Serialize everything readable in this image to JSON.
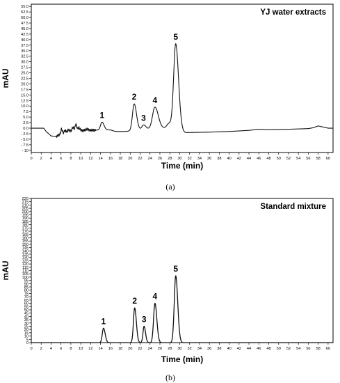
{
  "chart_data": [
    {
      "type": "line",
      "caption": "(a)",
      "legend": "YJ water extracts",
      "xlabel": "Time (min)",
      "ylabel": "mAU",
      "xlim": [
        0,
        61
      ],
      "ylim": [
        -11,
        56
      ],
      "xticks": [
        0,
        2,
        4,
        6,
        8,
        10,
        12,
        14,
        16,
        18,
        20,
        22,
        24,
        26,
        28,
        30,
        32,
        34,
        36,
        38,
        40,
        42,
        44,
        46,
        48,
        50,
        52,
        54,
        56,
        58,
        60
      ],
      "yticks": [
        -10,
        -7.5,
        -5,
        -2.5,
        0,
        2.5,
        5,
        7.5,
        10,
        12.5,
        15,
        17.5,
        20,
        22.5,
        25,
        27.5,
        30,
        32.5,
        35,
        37.5,
        40,
        42.5,
        45,
        47.5,
        50,
        52.5,
        55
      ],
      "ytick_labels": [
        "- 10",
        "- 7.5",
        "- 5.0",
        "- 2.5",
        "0.0",
        "2.5",
        "5.0",
        "7.5",
        "10.0",
        "12.5",
        "15.0",
        "17.5",
        "20.0",
        "22.5",
        "25.0",
        "27.5",
        "30.0",
        "32.5",
        "35.0",
        "37.5",
        "40.0",
        "42.5",
        "45.0",
        "47.5",
        "50.0",
        "52.5",
        "55.0"
      ],
      "baseline": [
        [
          0,
          0
        ],
        [
          2.5,
          0
        ],
        [
          3,
          -1.5
        ],
        [
          4,
          -3.5
        ],
        [
          5,
          -3.8
        ],
        [
          6,
          -2.5
        ],
        [
          8,
          -1.2
        ],
        [
          10,
          -1
        ],
        [
          12,
          -1
        ],
        [
          14,
          -0.8
        ],
        [
          16,
          -0.8
        ],
        [
          17,
          -1.5
        ],
        [
          19,
          -1.5
        ],
        [
          21,
          -1
        ],
        [
          23,
          -0.5
        ],
        [
          25,
          -0.5
        ],
        [
          27,
          0
        ],
        [
          29,
          0.3
        ],
        [
          30,
          -0.8
        ],
        [
          31,
          -2
        ],
        [
          36,
          -1.8
        ],
        [
          40,
          -1.5
        ],
        [
          44,
          -1
        ],
        [
          46,
          -0.5
        ],
        [
          48,
          -0.7
        ],
        [
          52,
          -0.5
        ],
        [
          56,
          -0.2
        ],
        [
          57,
          0.2
        ],
        [
          58,
          1
        ],
        [
          59,
          0.5
        ],
        [
          60,
          0
        ],
        [
          61,
          0
        ]
      ],
      "peaks": [
        {
          "label": "1",
          "rt": 14.3,
          "height": 3.5,
          "width": 0.3
        },
        {
          "label": "2",
          "rt": 20.8,
          "height": 12.0,
          "width": 0.35
        },
        {
          "label": "3",
          "rt": 22.7,
          "height": 2.0,
          "width": 0.35
        },
        {
          "label": "4",
          "rt": 25.0,
          "height": 10.0,
          "width": 0.5
        },
        {
          "label": "5",
          "rt": 29.2,
          "height": 38.0,
          "width": 0.42
        }
      ],
      "minor_peaks": [
        {
          "rt": 6.1,
          "height": 2.0,
          "width": 0.12
        },
        {
          "rt": 6.8,
          "height": 1.0,
          "width": 0.12
        },
        {
          "rt": 7.5,
          "height": 0.8,
          "width": 0.12
        },
        {
          "rt": 8.4,
          "height": 1.5,
          "width": 0.15
        },
        {
          "rt": 9.0,
          "height": 2.8,
          "width": 0.15
        },
        {
          "rt": 9.6,
          "height": 1.2,
          "width": 0.15
        },
        {
          "rt": 11.3,
          "height": 0.6,
          "width": 0.2
        },
        {
          "rt": 27.8,
          "height": 2.0,
          "width": 0.4
        }
      ]
    },
    {
      "type": "line",
      "caption": "(b)",
      "legend": "Standard mixture",
      "xlabel": "Time (min)",
      "ylabel": "mAU",
      "xlim": [
        0,
        61
      ],
      "ylim": [
        0,
        220
      ],
      "xticks": [
        0,
        2,
        4,
        6,
        8,
        10,
        12,
        14,
        16,
        18,
        20,
        22,
        24,
        26,
        28,
        30,
        32,
        34,
        36,
        38,
        40,
        42,
        44,
        46,
        48,
        50,
        52,
        54,
        56,
        58,
        60
      ],
      "yticks": [
        0,
        5,
        10,
        15,
        20,
        25,
        30,
        35,
        40,
        45,
        50,
        55,
        60,
        65,
        70,
        75,
        80,
        85,
        90,
        95,
        100,
        105,
        110,
        115,
        120,
        125,
        130,
        135,
        140,
        145,
        150,
        155,
        160,
        165,
        170,
        175,
        180,
        185,
        190,
        195,
        200,
        205,
        210,
        215,
        220
      ],
      "ytick_labels": [
        "0",
        "5",
        "10",
        "15",
        "20",
        "25",
        "30",
        "35",
        "40",
        "45",
        "50",
        "55",
        "60",
        "65",
        "70",
        "75",
        "80",
        "85",
        "90",
        "95",
        "100",
        "105",
        "110",
        "115",
        "120",
        "125",
        "130",
        "135",
        "140",
        "145",
        "150",
        "155",
        "160",
        "165",
        "170",
        "175",
        "180",
        "185",
        "190",
        "195",
        "200",
        "205",
        "210",
        "215",
        "220"
      ],
      "baseline": [
        [
          0,
          0
        ],
        [
          61,
          0
        ]
      ],
      "peaks": [
        {
          "label": "1",
          "rt": 14.6,
          "height": 22,
          "width": 0.25
        },
        {
          "label": "2",
          "rt": 20.9,
          "height": 53,
          "width": 0.25
        },
        {
          "label": "3",
          "rt": 22.8,
          "height": 25,
          "width": 0.22
        },
        {
          "label": "4",
          "rt": 25.0,
          "height": 60,
          "width": 0.28
        },
        {
          "label": "5",
          "rt": 29.2,
          "height": 102,
          "width": 0.3
        }
      ],
      "minor_peaks": []
    }
  ]
}
